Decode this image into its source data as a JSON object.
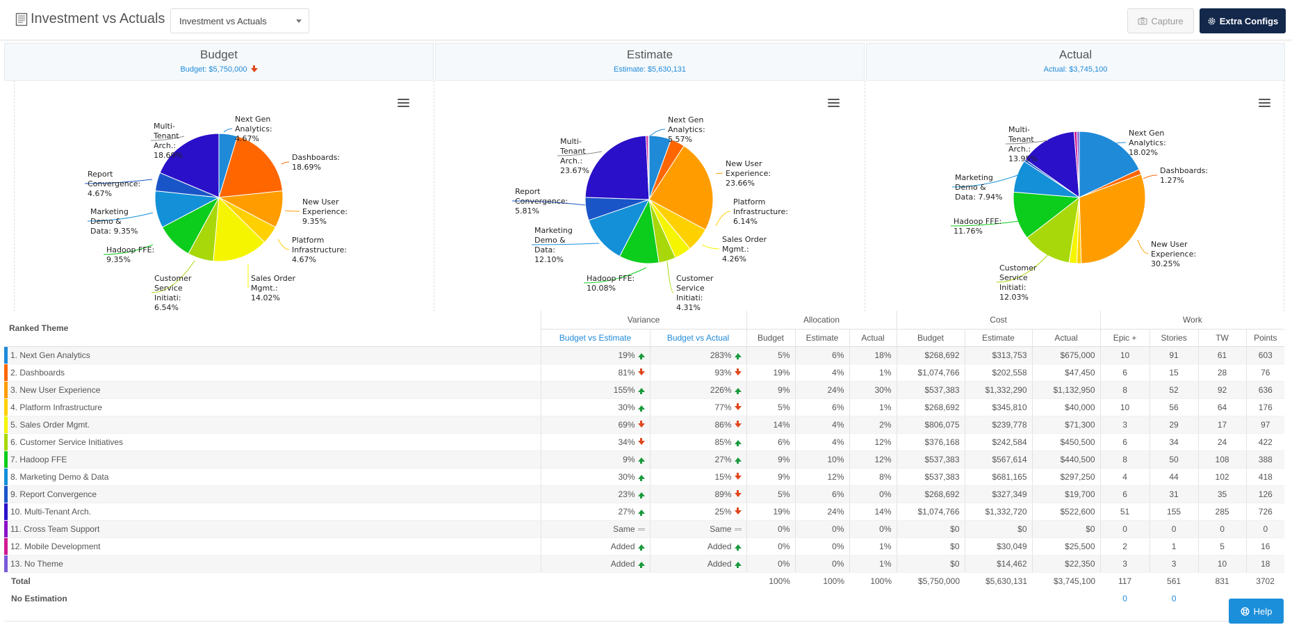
{
  "header": {
    "title": "Investment vs Actuals",
    "view_selected": "Investment vs Actuals",
    "capture_label": "Capture",
    "extra_configs_label": "Extra Configs",
    "icons": {
      "title": "report-icon",
      "capture": "camera-icon",
      "extra": "gear-icon"
    }
  },
  "panels": [
    {
      "title": "Budget",
      "subtitle": "Budget: $5,750,000",
      "indicator": "down"
    },
    {
      "title": "Estimate",
      "subtitle": "Estimate: $5,630,131"
    },
    {
      "title": "Actual",
      "subtitle": "Actual: $3,745,100"
    }
  ],
  "chart_data": [
    {
      "type": "pie",
      "title": "Budget",
      "slices": [
        {
          "label": "Next Gen Analytics",
          "value": 4.67,
          "color": "#1f8ad8"
        },
        {
          "label": "Dashboards",
          "value": 18.69,
          "color": "#ff6600"
        },
        {
          "label": "New User Experience",
          "value": 9.35,
          "color": "#ff9d00"
        },
        {
          "label": "Platform Infrastructure",
          "value": 4.67,
          "color": "#ffd000"
        },
        {
          "label": "Sales Order Mgmt.",
          "value": 14.02,
          "color": "#f5f500"
        },
        {
          "label": "Customer Service Initiati",
          "value": 6.54,
          "color": "#a8d80a"
        },
        {
          "label": "Hadoop FFE",
          "value": 9.35,
          "color": "#0ccc1c"
        },
        {
          "label": "Marketing Demo & Data",
          "value": 9.35,
          "color": "#1390d8"
        },
        {
          "label": "Report Convergence",
          "value": 4.67,
          "color": "#1a55c8"
        },
        {
          "label": "Multi-Tenant Arch.",
          "value": 18.69,
          "color": "#2a10c8"
        }
      ],
      "callouts": [
        {
          "lines": [
            "Next Gen",
            "Analytics:",
            "4.67%"
          ]
        },
        {
          "lines": [
            "Dashboards:",
            "18.69%"
          ]
        },
        {
          "lines": [
            "New User",
            "Experience:",
            "9.35%"
          ]
        },
        {
          "lines": [
            "Platform",
            "Infrastructure:",
            "4.67%"
          ]
        },
        {
          "lines": [
            "Sales Order",
            "Mgmt.:",
            "14.02%"
          ]
        },
        {
          "lines": [
            "Customer",
            "Service",
            "Initiati:",
            "6.54%"
          ]
        },
        {
          "lines": [
            "Hadoop FFE:",
            "9.35%"
          ]
        },
        {
          "lines": [
            "Marketing",
            "Demo &",
            "Data: 9.35%"
          ]
        },
        {
          "lines": [
            "Report",
            "Convergence:",
            "4.67%"
          ]
        },
        {
          "lines": [
            "Multi-",
            "Tenant",
            "Arch.:",
            "18.69%"
          ]
        }
      ]
    },
    {
      "type": "pie",
      "title": "Estimate",
      "slices": [
        {
          "label": "Next Gen Analytics",
          "value": 5.57,
          "color": "#1f8ad8"
        },
        {
          "label": "Dashboards",
          "value": 3.6,
          "color": "#ff6600"
        },
        {
          "label": "New User Experience",
          "value": 23.66,
          "color": "#ff9d00"
        },
        {
          "label": "Platform Infrastructure",
          "value": 6.14,
          "color": "#ffd000"
        },
        {
          "label": "Sales Order Mgmt.",
          "value": 4.26,
          "color": "#f5f500"
        },
        {
          "label": "Customer Service Initiati",
          "value": 4.31,
          "color": "#a8d80a"
        },
        {
          "label": "Hadoop FFE",
          "value": 10.08,
          "color": "#0ccc1c"
        },
        {
          "label": "Marketing Demo & Data",
          "value": 12.1,
          "color": "#1390d8"
        },
        {
          "label": "Report Convergence",
          "value": 5.81,
          "color": "#1a55c8"
        },
        {
          "label": "Multi-Tenant Arch.",
          "value": 23.67,
          "color": "#2a10c8"
        },
        {
          "label": "Cross Team Support",
          "value": 0.0,
          "color": "#8a10c8"
        },
        {
          "label": "Mobile Development",
          "value": 0.53,
          "color": "#d01a90"
        },
        {
          "label": "No Theme",
          "value": 0.26,
          "color": "#7a5ad8"
        }
      ],
      "callouts": [
        {
          "lines": [
            "Next Gen",
            "Analytics:",
            "5.57%"
          ]
        },
        {
          "lines": [
            "New User",
            "Experience:",
            "23.66%"
          ]
        },
        {
          "lines": [
            "Platform",
            "Infrastructure:",
            "6.14%"
          ]
        },
        {
          "lines": [
            "Sales Order",
            "Mgmt.:",
            "4.26%"
          ]
        },
        {
          "lines": [
            "Customer",
            "Service",
            "Initiati:",
            "4.31%"
          ]
        },
        {
          "lines": [
            "Hadoop FFE:",
            "10.08%"
          ]
        },
        {
          "lines": [
            "Marketing",
            "Demo &",
            "Data:",
            "12.10%"
          ]
        },
        {
          "lines": [
            "Report",
            "Convergence:",
            "5.81%"
          ]
        },
        {
          "lines": [
            "Multi-",
            "Tenant",
            "Arch.:",
            "23.67%"
          ]
        }
      ]
    },
    {
      "type": "pie",
      "title": "Actual",
      "slices": [
        {
          "label": "Next Gen Analytics",
          "value": 18.02,
          "color": "#1f8ad8"
        },
        {
          "label": "Dashboards",
          "value": 1.27,
          "color": "#ff6600"
        },
        {
          "label": "New User Experience",
          "value": 30.25,
          "color": "#ff9d00"
        },
        {
          "label": "Platform Infrastructure",
          "value": 1.07,
          "color": "#ffd000"
        },
        {
          "label": "Sales Order Mgmt.",
          "value": 1.9,
          "color": "#f5f500"
        },
        {
          "label": "Customer Service Initiati",
          "value": 12.03,
          "color": "#a8d80a"
        },
        {
          "label": "Hadoop FFE",
          "value": 11.76,
          "color": "#0ccc1c"
        },
        {
          "label": "Marketing Demo & Data",
          "value": 7.94,
          "color": "#1390d8"
        },
        {
          "label": "Report Convergence",
          "value": 0.53,
          "color": "#1a55c8"
        },
        {
          "label": "Multi-Tenant Arch.",
          "value": 13.95,
          "color": "#2a10c8"
        },
        {
          "label": "Cross Team Support",
          "value": 0.0,
          "color": "#8a10c8"
        },
        {
          "label": "Mobile Development",
          "value": 0.68,
          "color": "#d01a90"
        },
        {
          "label": "No Theme",
          "value": 0.6,
          "color": "#7a5ad8"
        }
      ],
      "callouts": [
        {
          "lines": [
            "Next Gen",
            "Analytics:",
            "18.02%"
          ]
        },
        {
          "lines": [
            "Dashboards:",
            "1.27%"
          ]
        },
        {
          "lines": [
            "New User",
            "Experience:",
            "30.25%"
          ]
        },
        {
          "lines": [
            "Customer",
            "Service",
            "Initiati:",
            "12.03%"
          ]
        },
        {
          "lines": [
            "Hadoop FFE:",
            "11.76%"
          ]
        },
        {
          "lines": [
            "Marketing",
            "Demo &",
            "Data: 7.94%"
          ]
        },
        {
          "lines": [
            "Multi-",
            "Tenant",
            "Arch.:",
            "13.95%"
          ]
        }
      ]
    }
  ],
  "table": {
    "ranked_theme_header": "Ranked Theme",
    "groups": {
      "variance": "Variance",
      "allocation": "Allocation",
      "cost": "Cost",
      "work": "Work"
    },
    "subheaders": {
      "budget_vs_estimate": "Budget vs Estimate",
      "budget_vs_actual": "Budget vs Actual",
      "alloc_budget": "Budget",
      "alloc_estimate": "Estimate",
      "alloc_actual": "Actual",
      "cost_budget": "Budget",
      "cost_estimate": "Estimate",
      "cost_actual": "Actual",
      "epic": "Epic +",
      "stories": "Stories",
      "tw": "TW",
      "points": "Points"
    },
    "rows": [
      {
        "name": "1. Next Gen Analytics",
        "color": "#1f8ad8",
        "bve": "19%",
        "bve_dir": "up",
        "bva": "283%",
        "bva_dir": "up",
        "ab": "5%",
        "ae": "6%",
        "aa": "18%",
        "cb": "$268,692",
        "ce": "$313,753",
        "ca": "$675,000",
        "epic": "10",
        "stories": "91",
        "tw": "61",
        "points": "603"
      },
      {
        "name": "2. Dashboards",
        "color": "#ff6600",
        "bve": "81%",
        "bve_dir": "down",
        "bva": "93%",
        "bva_dir": "down",
        "ab": "19%",
        "ae": "4%",
        "aa": "1%",
        "cb": "$1,074,766",
        "ce": "$202,558",
        "ca": "$47,450",
        "epic": "6",
        "stories": "15",
        "tw": "28",
        "points": "76"
      },
      {
        "name": "3. New User Experience",
        "color": "#ff9d00",
        "bve": "155%",
        "bve_dir": "up",
        "bva": "226%",
        "bva_dir": "up",
        "ab": "9%",
        "ae": "24%",
        "aa": "30%",
        "cb": "$537,383",
        "ce": "$1,332,290",
        "ca": "$1,132,950",
        "epic": "8",
        "stories": "52",
        "tw": "92",
        "points": "636"
      },
      {
        "name": "4. Platform Infrastructure",
        "color": "#ffd000",
        "bve": "30%",
        "bve_dir": "up",
        "bva": "77%",
        "bva_dir": "down",
        "ab": "5%",
        "ae": "6%",
        "aa": "1%",
        "cb": "$268,692",
        "ce": "$345,810",
        "ca": "$40,000",
        "epic": "10",
        "stories": "56",
        "tw": "64",
        "points": "176"
      },
      {
        "name": "5. Sales Order Mgmt.",
        "color": "#f5f500",
        "bve": "69%",
        "bve_dir": "down",
        "bva": "86%",
        "bva_dir": "down",
        "ab": "14%",
        "ae": "4%",
        "aa": "2%",
        "cb": "$806,075",
        "ce": "$239,778",
        "ca": "$71,300",
        "epic": "3",
        "stories": "29",
        "tw": "17",
        "points": "97"
      },
      {
        "name": "6. Customer Service Initiatives",
        "color": "#a8d80a",
        "bve": "34%",
        "bve_dir": "down",
        "bva": "85%",
        "bva_dir": "up",
        "ab": "6%",
        "ae": "4%",
        "aa": "12%",
        "cb": "$376,168",
        "ce": "$242,584",
        "ca": "$450,500",
        "epic": "6",
        "stories": "34",
        "tw": "24",
        "points": "422"
      },
      {
        "name": "7. Hadoop FFE",
        "color": "#0ccc1c",
        "bve": "9%",
        "bve_dir": "up",
        "bva": "27%",
        "bva_dir": "up",
        "ab": "9%",
        "ae": "10%",
        "aa": "12%",
        "cb": "$537,383",
        "ce": "$567,614",
        "ca": "$440,500",
        "epic": "8",
        "stories": "50",
        "tw": "108",
        "points": "388"
      },
      {
        "name": "8. Marketing Demo & Data",
        "color": "#1390d8",
        "bve": "30%",
        "bve_dir": "up",
        "bva": "15%",
        "bva_dir": "down",
        "ab": "9%",
        "ae": "12%",
        "aa": "8%",
        "cb": "$537,383",
        "ce": "$681,165",
        "ca": "$297,250",
        "epic": "4",
        "stories": "44",
        "tw": "102",
        "points": "418"
      },
      {
        "name": "9. Report Convergence",
        "color": "#1a55c8",
        "bve": "23%",
        "bve_dir": "up",
        "bva": "89%",
        "bva_dir": "down",
        "ab": "5%",
        "ae": "6%",
        "aa": "0%",
        "cb": "$268,692",
        "ce": "$327,349",
        "ca": "$19,700",
        "epic": "6",
        "stories": "31",
        "tw": "35",
        "points": "126"
      },
      {
        "name": "10. Multi-Tenant Arch.",
        "color": "#2a10c8",
        "bve": "27%",
        "bve_dir": "up",
        "bva": "25%",
        "bva_dir": "down",
        "ab": "19%",
        "ae": "24%",
        "aa": "14%",
        "cb": "$1,074,766",
        "ce": "$1,332,720",
        "ca": "$522,600",
        "epic": "51",
        "stories": "155",
        "tw": "285",
        "points": "726"
      },
      {
        "name": "11. Cross Team Support",
        "color": "#8a10c8",
        "bve": "Same",
        "bve_dir": "same",
        "bva": "Same",
        "bva_dir": "same",
        "ab": "0%",
        "ae": "0%",
        "aa": "0%",
        "cb": "$0",
        "ce": "$0",
        "ca": "$0",
        "epic": "0",
        "stories": "0",
        "tw": "0",
        "points": "0"
      },
      {
        "name": "12. Mobile Development",
        "color": "#d01a90",
        "bve": "Added",
        "bve_dir": "up",
        "bva": "Added",
        "bva_dir": "up",
        "ab": "0%",
        "ae": "0%",
        "aa": "1%",
        "cb": "$0",
        "ce": "$30,049",
        "ca": "$25,500",
        "epic": "2",
        "stories": "1",
        "tw": "5",
        "points": "16"
      },
      {
        "name": "13. No Theme",
        "color": "#7a5ad8",
        "bve": "Added",
        "bve_dir": "up",
        "bva": "Added",
        "bva_dir": "up",
        "ab": "0%",
        "ae": "0%",
        "aa": "1%",
        "cb": "$0",
        "ce": "$14,462",
        "ca": "$22,350",
        "epic": "3",
        "stories": "3",
        "tw": "10",
        "points": "18"
      }
    ],
    "total": {
      "label": "Total",
      "ab": "100%",
      "ae": "100%",
      "aa": "100%",
      "cb": "$5,750,000",
      "ce": "$5,630,131",
      "ca": "$3,745,100",
      "epic": "117",
      "stories": "561",
      "tw": "831",
      "points": "3702"
    },
    "no_estimation": {
      "label": "No Estimation",
      "epic": "0",
      "stories": "0"
    }
  },
  "help_label": "Help"
}
